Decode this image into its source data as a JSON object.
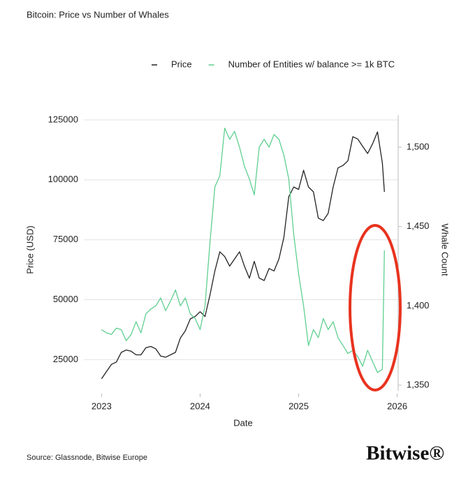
{
  "chart_data": {
    "type": "line",
    "title": "Bitcoin: Price vs Number of Whales",
    "xlabel": "Date",
    "ylabel": "Price (USD)",
    "y2label": "Whale Count",
    "source": "Source: Glassnode, Bitwise Europe",
    "logo": "Bitwise®",
    "x": [
      2023.0,
      2023.05,
      2023.1,
      2023.15,
      2023.2,
      2023.25,
      2023.3,
      2023.35,
      2023.4,
      2023.45,
      2023.5,
      2023.55,
      2023.6,
      2023.65,
      2023.7,
      2023.75,
      2023.8,
      2023.85,
      2023.9,
      2023.95,
      2024.0,
      2024.05,
      2024.1,
      2024.15,
      2024.2,
      2024.25,
      2024.3,
      2024.35,
      2024.4,
      2024.45,
      2024.5,
      2024.55,
      2024.6,
      2024.65,
      2024.7,
      2024.75,
      2024.8,
      2024.85,
      2024.9,
      2024.95,
      2025.0,
      2025.05,
      2025.1,
      2025.15,
      2025.2,
      2025.25,
      2025.3,
      2025.35,
      2025.4,
      2025.45,
      2025.5,
      2025.55,
      2025.6,
      2025.65,
      2025.7,
      2025.75,
      2025.8,
      2025.85,
      2025.87
    ],
    "xlim": [
      2022.82,
      2026.01
    ],
    "xticks": [
      2023,
      2024,
      2025,
      2026
    ],
    "ylim": [
      12000,
      127000
    ],
    "yticks": [
      25000,
      50000,
      75000,
      100000,
      125000
    ],
    "y2lim": [
      1346.5,
      1520.2
    ],
    "y2ticks": [
      {
        "value": 1350,
        "label": "1,350"
      },
      {
        "value": 1400,
        "label": "1,400"
      },
      {
        "value": 1450,
        "label": "1,450"
      },
      {
        "value": 1500,
        "label": "1,500"
      }
    ],
    "grid": true,
    "series": [
      {
        "name": "Price",
        "color": "#222222",
        "values": [
          17000,
          20000,
          23000,
          24000,
          28000,
          29000,
          28500,
          27000,
          27000,
          30000,
          30500,
          29500,
          26500,
          26000,
          27000,
          28000,
          34000,
          37000,
          42000,
          43000,
          45000,
          43000,
          52000,
          62000,
          70000,
          68000,
          64000,
          67000,
          70000,
          64000,
          59000,
          66000,
          59000,
          58000,
          63000,
          62000,
          67000,
          76000,
          93000,
          97000,
          96000,
          104000,
          97000,
          95000,
          84000,
          83000,
          86000,
          97000,
          105000,
          106000,
          108000,
          118000,
          117000,
          114000,
          111000,
          115000,
          120000,
          107000,
          95000
        ]
      },
      {
        "name": "Number of Entities w/ balance >= 1k BTC",
        "color": "#5fcf90",
        "axis": "y2",
        "values": [
          1385,
          1383,
          1382,
          1386,
          1385,
          1378,
          1382,
          1390,
          1383,
          1395,
          1398,
          1400,
          1405,
          1397,
          1403,
          1410,
          1400,
          1405,
          1395,
          1392,
          1385,
          1400,
          1440,
          1475,
          1482,
          1512,
          1505,
          1510,
          1500,
          1488,
          1480,
          1470,
          1500,
          1505,
          1500,
          1508,
          1505,
          1495,
          1480,
          1445,
          1420,
          1400,
          1375,
          1385,
          1380,
          1392,
          1385,
          1390,
          1380,
          1375,
          1370,
          1372,
          1368,
          1362,
          1372,
          1365,
          1358,
          1360,
          1435
        ]
      }
    ]
  }
}
